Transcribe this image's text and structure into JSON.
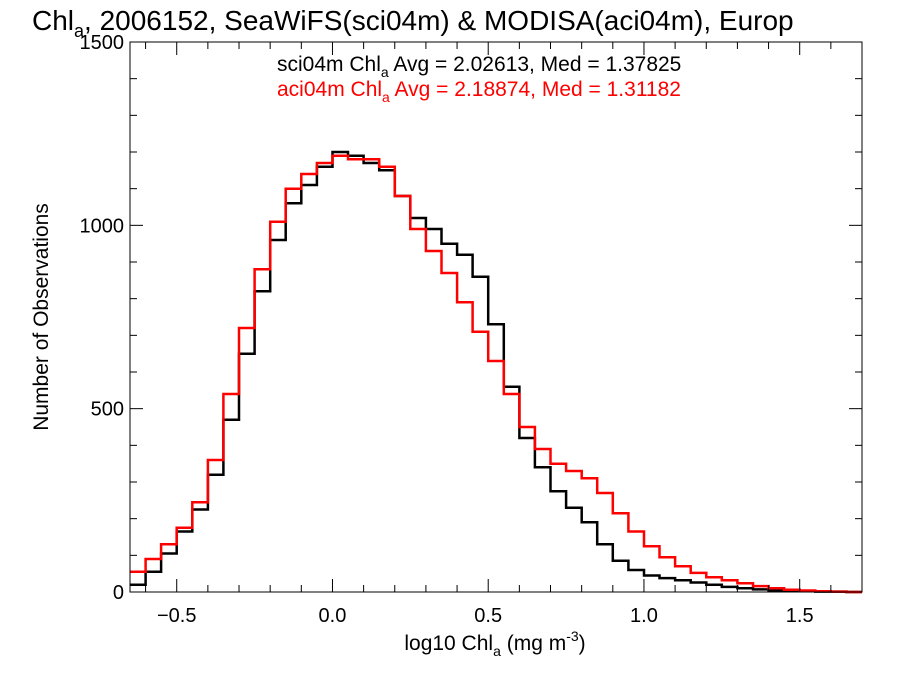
{
  "chart_data": {
    "type": "line",
    "title_parts": {
      "main": "Chl",
      "sub": "a",
      "rest": ", 2006152, SeaWiFS(sci04m) & MODISA(aci04m), Europ"
    },
    "xlabel_parts": {
      "main": "log10 Chl",
      "sub": "a",
      "rest": " (mg m",
      "sup": "-3",
      "close": ")"
    },
    "ylabel": "Number of Observations",
    "xlim": [
      -0.65,
      1.7
    ],
    "ylim": [
      0,
      1500
    ],
    "x_ticks": [
      -0.5,
      0.0,
      0.5,
      1.0,
      1.5
    ],
    "x_tick_labels": [
      "−0.5",
      "0.0",
      "0.5",
      "1.0",
      "1.5"
    ],
    "y_ticks": [
      0,
      500,
      1000,
      1500
    ],
    "y_tick_labels": [
      "0",
      "500",
      "1000",
      "1500"
    ],
    "legend": [
      {
        "pre": "sci04m Chl",
        "sub": "a",
        "post": " Avg = 2.02613, Med = 1.37825",
        "color": "#000000"
      },
      {
        "pre": "aci04m Chl",
        "sub": "a",
        "post": " Avg = 2.18874, Med = 1.31182",
        "color": "#ff0000"
      }
    ],
    "series": [
      {
        "name": "sci04m",
        "color": "#000000",
        "x": [
          -0.65,
          -0.6,
          -0.55,
          -0.5,
          -0.45,
          -0.4,
          -0.35,
          -0.3,
          -0.25,
          -0.2,
          -0.15,
          -0.1,
          -0.05,
          0.0,
          0.05,
          0.1,
          0.15,
          0.2,
          0.25,
          0.3,
          0.35,
          0.4,
          0.45,
          0.5,
          0.55,
          0.6,
          0.65,
          0.7,
          0.75,
          0.8,
          0.85,
          0.9,
          0.95,
          1.0,
          1.05,
          1.1,
          1.15,
          1.2,
          1.25,
          1.3,
          1.35,
          1.4,
          1.45,
          1.5,
          1.55,
          1.6,
          1.65,
          1.7
        ],
        "y": [
          20,
          55,
          105,
          165,
          225,
          320,
          470,
          650,
          820,
          960,
          1060,
          1110,
          1160,
          1200,
          1190,
          1170,
          1150,
          1080,
          1020,
          990,
          950,
          920,
          860,
          730,
          560,
          420,
          340,
          275,
          230,
          190,
          130,
          85,
          60,
          45,
          38,
          32,
          26,
          20,
          14,
          10,
          7,
          4,
          3,
          2,
          1,
          1,
          0,
          0
        ]
      },
      {
        "name": "aci04m",
        "color": "#ff0000",
        "x": [
          -0.65,
          -0.6,
          -0.55,
          -0.5,
          -0.45,
          -0.4,
          -0.35,
          -0.3,
          -0.25,
          -0.2,
          -0.15,
          -0.1,
          -0.05,
          0.0,
          0.05,
          0.1,
          0.15,
          0.2,
          0.25,
          0.3,
          0.35,
          0.4,
          0.45,
          0.5,
          0.55,
          0.6,
          0.65,
          0.7,
          0.75,
          0.8,
          0.85,
          0.9,
          0.95,
          1.0,
          1.05,
          1.1,
          1.15,
          1.2,
          1.25,
          1.3,
          1.35,
          1.4,
          1.45,
          1.5,
          1.55,
          1.6,
          1.65,
          1.7
        ],
        "y": [
          55,
          90,
          130,
          175,
          245,
          360,
          540,
          720,
          880,
          1010,
          1100,
          1140,
          1170,
          1190,
          1180,
          1180,
          1160,
          1080,
          990,
          930,
          870,
          790,
          710,
          630,
          540,
          450,
          390,
          350,
          330,
          310,
          270,
          215,
          165,
          125,
          95,
          70,
          52,
          40,
          32,
          24,
          16,
          10,
          6,
          4,
          2,
          1,
          0,
          0
        ]
      }
    ]
  }
}
